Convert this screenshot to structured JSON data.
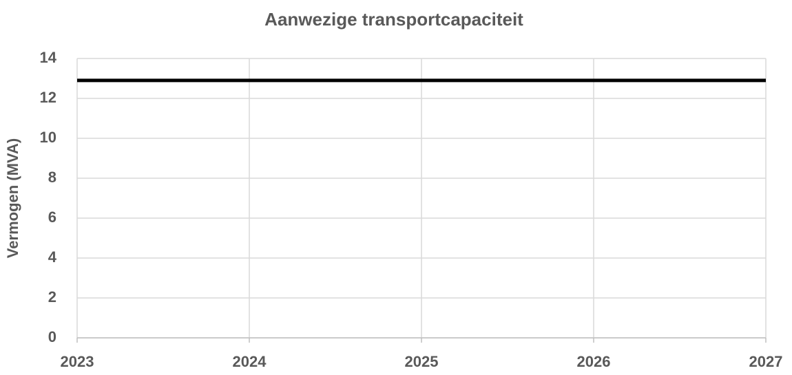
{
  "chart_data": {
    "type": "line",
    "title": "Aanwezige transportcapaciteit",
    "y_label": "Vermogen (MVA)",
    "x": [
      2023,
      2024,
      2025,
      2026,
      2027
    ],
    "series": [
      {
        "color": "#000000",
        "values": [
          12.9,
          12.9,
          12.9,
          12.9,
          12.9
        ]
      }
    ],
    "xlim": [
      2023,
      2027
    ],
    "xticks": [
      2023,
      2024,
      2025,
      2026,
      2027
    ],
    "ylim": [
      0,
      14
    ],
    "yticks": [
      0,
      2,
      4,
      6,
      8,
      10,
      12,
      14
    ],
    "grid": true
  }
}
